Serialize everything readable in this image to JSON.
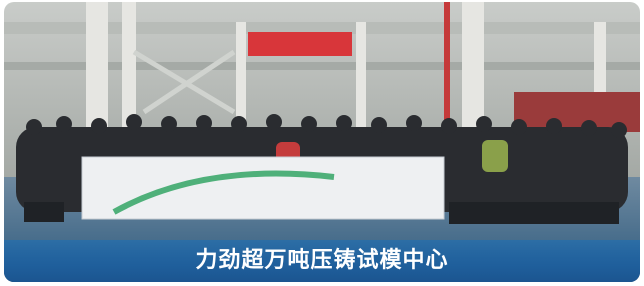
{
  "photo": {
    "caption": "力劲超万吨压铸试模中心"
  }
}
